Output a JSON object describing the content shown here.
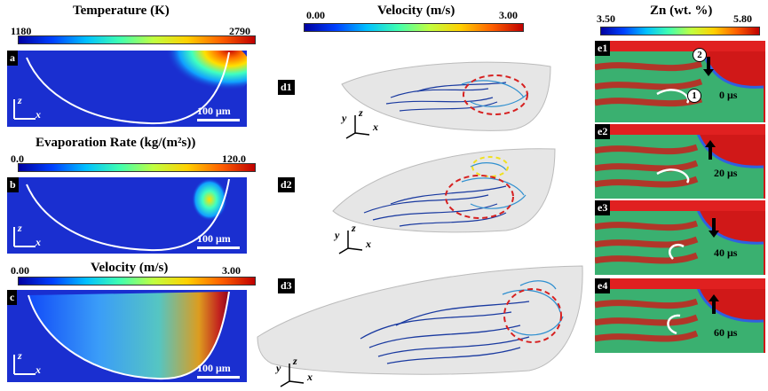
{
  "left": {
    "a": {
      "title": "Temperature (K)",
      "min": "1180",
      "max": "2790",
      "tag": "a",
      "scale": "100 μm"
    },
    "b": {
      "title": "Evaporation Rate (kg/(m²s))",
      "min": "0.0",
      "max": "120.0",
      "tag": "b",
      "scale": "100 μm"
    },
    "c": {
      "title": "Velocity (m/s)",
      "min": "0.00",
      "max": "3.00",
      "tag": "c",
      "scale": "100 μm"
    },
    "axis_z": "z",
    "axis_x": "x"
  },
  "middle": {
    "title": "Velocity (m/s)",
    "min": "0.00",
    "max": "3.00",
    "tags": [
      "d1",
      "d2",
      "d3"
    ],
    "axis_x": "x",
    "axis_y": "y",
    "axis_z": "z"
  },
  "right": {
    "title": "Zn (wt. %)",
    "min": "3.50",
    "max": "5.80",
    "panels": [
      {
        "tag": "e1",
        "time": "0 μs"
      },
      {
        "tag": "e2",
        "time": "20 μs"
      },
      {
        "tag": "e3",
        "time": "40 μs"
      },
      {
        "tag": "e4",
        "time": "60 μs"
      }
    ],
    "marker_1": "1",
    "marker_2": "2"
  },
  "colors": {
    "background_blue": "#1a2fd0",
    "zn_red": "#d01818",
    "melt_outline": "#ffffff",
    "highlight_red": "#d62020",
    "highlight_yellow": "#f0e020"
  }
}
